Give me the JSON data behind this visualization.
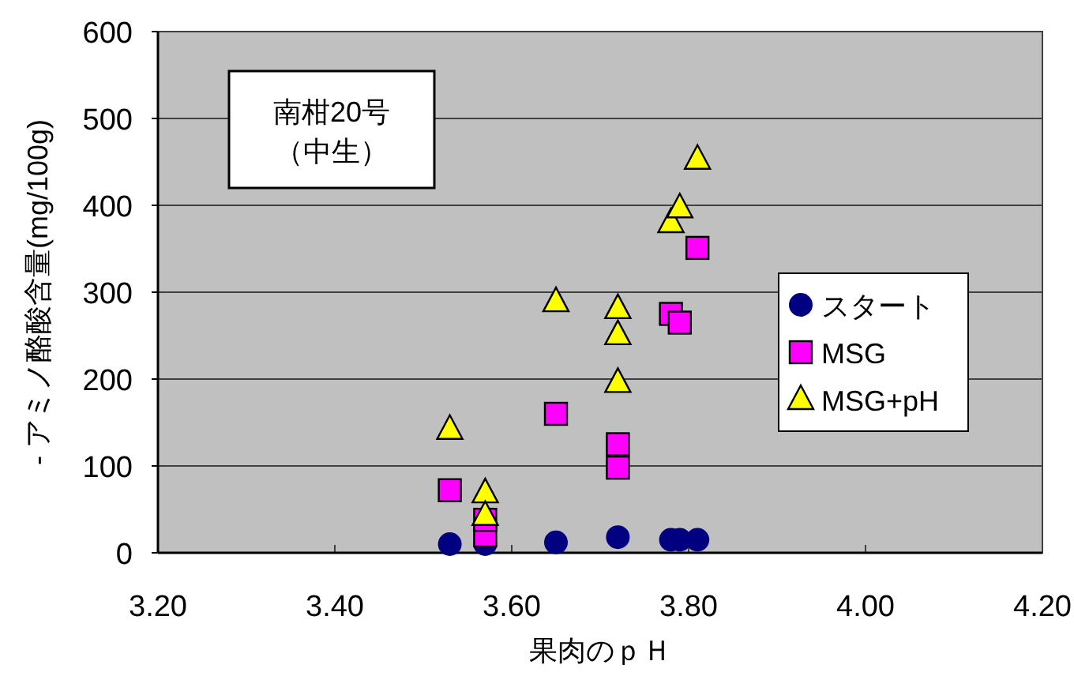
{
  "chart_data": {
    "type": "scatter",
    "xlabel": "果肉のｐＨ",
    "ylabel": "- アミノ酪酸含量(mg/100g)",
    "annotations": [
      "南柑20号",
      "（中生）"
    ],
    "xlim": [
      3.2,
      4.2
    ],
    "xticks": [
      {
        "value": 3.2,
        "label": "3.20"
      },
      {
        "value": 3.4,
        "label": "3.40"
      },
      {
        "value": 3.6,
        "label": "3.60"
      },
      {
        "value": 3.8,
        "label": "3.80"
      },
      {
        "value": 4.0,
        "label": "4.00"
      },
      {
        "value": 4.2,
        "label": "4.20"
      }
    ],
    "ylim": [
      0,
      600
    ],
    "yticks": [
      0,
      100,
      200,
      300,
      400,
      500,
      600
    ],
    "grid": "y",
    "legend": "right",
    "series": [
      {
        "name": "スタート",
        "color": "#000080",
        "marker": "circle",
        "x": [
          3.53,
          3.57,
          3.65,
          3.72,
          3.78,
          3.79,
          3.81
        ],
        "values": [
          10,
          10,
          12,
          18,
          15,
          15,
          15
        ]
      },
      {
        "name": "MSG",
        "color": "#ff00ff",
        "marker": "square",
        "x": [
          3.53,
          3.57,
          3.57,
          3.65,
          3.72,
          3.72,
          3.78,
          3.79,
          3.81
        ],
        "values": [
          72,
          20,
          38,
          160,
          125,
          98,
          275,
          265,
          351
        ]
      },
      {
        "name": "MSG+pH",
        "color": "#ffff00",
        "marker": "triangle",
        "x": [
          3.53,
          3.57,
          3.57,
          3.65,
          3.72,
          3.72,
          3.72,
          3.78,
          3.79,
          3.81
        ],
        "values": [
          142,
          69,
          43,
          289,
          281,
          251,
          196,
          380,
          397,
          453
        ]
      }
    ]
  }
}
